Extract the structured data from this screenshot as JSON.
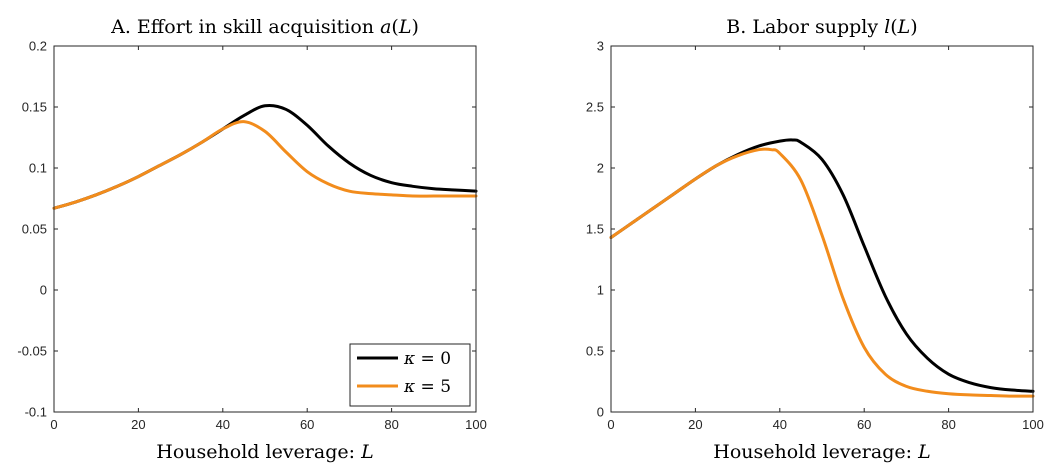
{
  "chart_data": [
    {
      "type": "line",
      "title": "A. Effort in skill acquisition a(L)",
      "xlabel": "Household leverage: L",
      "ylabel": "",
      "xlim": [
        0,
        100
      ],
      "ylim": [
        -0.1,
        0.2
      ],
      "xticks": [
        0,
        20,
        40,
        60,
        80,
        100
      ],
      "xtick_labels": [
        "0",
        "20",
        "40",
        "60",
        "80",
        "100"
      ],
      "yticks": [
        -0.1,
        -0.05,
        0,
        0.05,
        0.1,
        0.15,
        0.2
      ],
      "ytick_labels": [
        "-0.1",
        "-0.05",
        "0",
        "0.05",
        "0.1",
        "0.15",
        "0.2"
      ],
      "grid": false,
      "legend": {
        "placement": "bottom-right",
        "entries": [
          "κ = 0",
          "κ = 5"
        ]
      },
      "series": [
        {
          "name": "κ = 0",
          "color": "#000000",
          "x": [
            0,
            5,
            10,
            15,
            20,
            25,
            30,
            35,
            40,
            45,
            50,
            55,
            60,
            65,
            70,
            75,
            80,
            85,
            90,
            95,
            100
          ],
          "y": [
            0.067,
            0.072,
            0.078,
            0.085,
            0.093,
            0.102,
            0.111,
            0.121,
            0.132,
            0.143,
            0.151,
            0.148,
            0.135,
            0.118,
            0.104,
            0.094,
            0.088,
            0.085,
            0.083,
            0.082,
            0.081
          ]
        },
        {
          "name": "κ = 5",
          "color": "#f28c1c",
          "x": [
            0,
            5,
            10,
            15,
            20,
            25,
            30,
            35,
            40,
            45,
            50,
            55,
            60,
            65,
            70,
            75,
            80,
            85,
            90,
            95,
            100
          ],
          "y": [
            0.067,
            0.072,
            0.078,
            0.085,
            0.093,
            0.102,
            0.111,
            0.121,
            0.132,
            0.138,
            0.13,
            0.113,
            0.097,
            0.087,
            0.081,
            0.079,
            0.078,
            0.077,
            0.077,
            0.077,
            0.077
          ]
        }
      ]
    },
    {
      "type": "line",
      "title": "B. Labor supply l(L)",
      "xlabel": "Household leverage: L",
      "ylabel": "",
      "xlim": [
        0,
        100
      ],
      "ylim": [
        0,
        3
      ],
      "xticks": [
        0,
        20,
        40,
        60,
        80,
        100
      ],
      "xtick_labels": [
        "0",
        "20",
        "40",
        "60",
        "80",
        "100"
      ],
      "yticks": [
        0,
        0.5,
        1,
        1.5,
        2,
        2.5,
        3
      ],
      "ytick_labels": [
        "0",
        "0.5",
        "1",
        "1.5",
        "2",
        "2.5",
        "3"
      ],
      "grid": false,
      "series": [
        {
          "name": "κ = 0",
          "color": "#000000",
          "x": [
            0,
            5,
            10,
            15,
            20,
            25,
            30,
            35,
            40,
            43,
            45,
            50,
            55,
            60,
            65,
            70,
            75,
            80,
            85,
            90,
            95,
            100
          ],
          "y": [
            1.43,
            1.55,
            1.67,
            1.79,
            1.91,
            2.02,
            2.11,
            2.18,
            2.22,
            2.23,
            2.21,
            2.07,
            1.78,
            1.36,
            0.95,
            0.64,
            0.44,
            0.31,
            0.24,
            0.2,
            0.18,
            0.17
          ]
        },
        {
          "name": "κ = 5",
          "color": "#f28c1c",
          "x": [
            0,
            5,
            10,
            15,
            20,
            25,
            30,
            35,
            38,
            40,
            45,
            50,
            55,
            60,
            65,
            70,
            75,
            80,
            85,
            90,
            95,
            100
          ],
          "y": [
            1.43,
            1.55,
            1.67,
            1.79,
            1.91,
            2.02,
            2.1,
            2.15,
            2.15,
            2.12,
            1.9,
            1.45,
            0.93,
            0.53,
            0.31,
            0.21,
            0.17,
            0.15,
            0.14,
            0.135,
            0.13,
            0.13
          ]
        }
      ]
    }
  ]
}
